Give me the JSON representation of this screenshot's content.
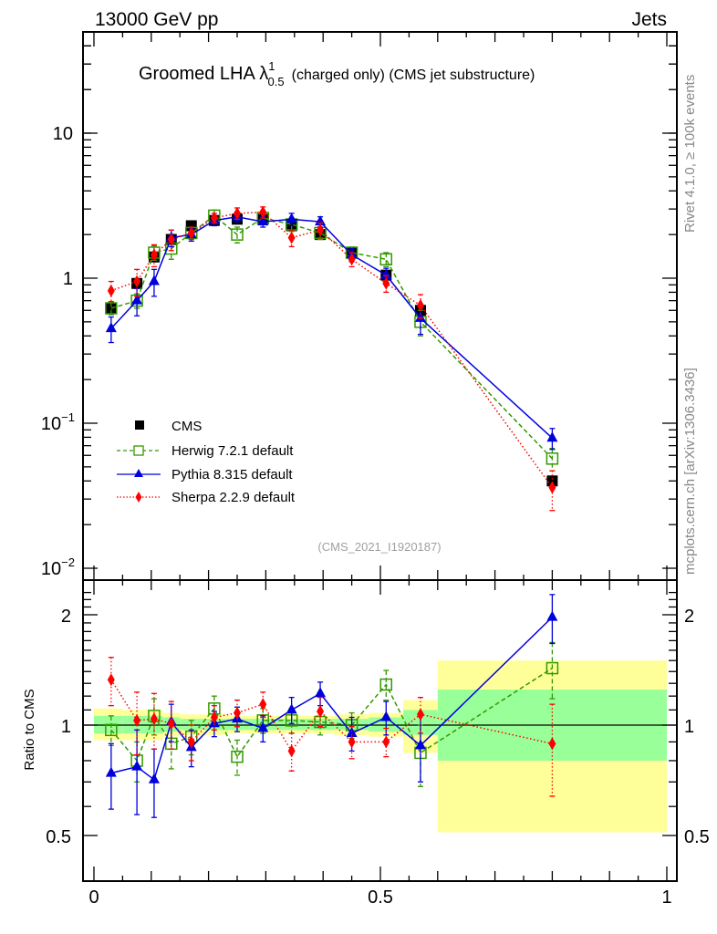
{
  "header": {
    "left_label": "13000 GeV pp",
    "right_label": "Jets"
  },
  "side_labels": {
    "rivet": "Rivet 4.1.0, ≥ 100k events",
    "mcplots": "mcplots.cern.ch [arXiv:1306.3436]"
  },
  "colors": {
    "cms": "#000000",
    "herwig": "#339900",
    "pythia": "#0000dd",
    "sherpa": "#ff0000",
    "band_inner": "#99ff99",
    "band_outer": "#ffff99",
    "watermark": "#a0a0a0"
  },
  "chart_data": [
    {
      "type": "scatter",
      "panel": "main",
      "title_main": "Groomed LHA ",
      "title_symbol": "λ",
      "title_sup": "1",
      "title_sub": "0.5",
      "title_rest": "(charged only) (CMS jet substructure)",
      "annotation": "(CMS_2021_I1920187)",
      "xlabel": "",
      "ylabel": "",
      "yscale": "log",
      "xlim": [
        0,
        1
      ],
      "ylim": [
        0.01,
        50
      ],
      "ytick_labels": [
        {
          "value": 10,
          "base": "10",
          "exp": ""
        },
        {
          "value": 1,
          "base": "1",
          "exp": ""
        },
        {
          "value": 0.1,
          "base": "10",
          "exp": "−1"
        },
        {
          "value": 0.01,
          "base": "10",
          "exp": "−2"
        }
      ],
      "legend": {
        "placement": "lower-left",
        "entries": [
          "CMS",
          "Herwig 7.2.1 default",
          "Pythia 8.315 default",
          "Sherpa 2.2.9 default"
        ]
      },
      "x": [
        0.03,
        0.075,
        0.105,
        0.135,
        0.17,
        0.21,
        0.25,
        0.295,
        0.345,
        0.395,
        0.45,
        0.51,
        0.57,
        0.8
      ],
      "series": [
        {
          "name": "CMS",
          "marker": "square-filled",
          "values": [
            0.62,
            0.92,
            1.4,
            1.85,
            2.3,
            2.5,
            2.55,
            2.55,
            2.3,
            2.0,
            1.5,
            1.05,
            0.6,
            0.04
          ],
          "errors": [
            0.04,
            0.05,
            0.06,
            0.07,
            0.08,
            0.08,
            0.08,
            0.08,
            0.08,
            0.07,
            0.05,
            0.04,
            0.03,
            0.003
          ]
        },
        {
          "name": "Herwig 7.2.1 default",
          "marker": "square-open",
          "line": "dashed",
          "values": [
            0.62,
            0.7,
            1.5,
            1.6,
            2.05,
            2.7,
            2.0,
            2.6,
            2.35,
            2.05,
            1.5,
            1.35,
            0.5,
            0.057
          ],
          "errors": [
            0.06,
            0.08,
            0.17,
            0.25,
            0.2,
            0.25,
            0.25,
            0.25,
            0.25,
            0.2,
            0.14,
            0.15,
            0.1,
            0.01
          ]
        },
        {
          "name": "Pythia 8.315 default",
          "marker": "triangle",
          "line": "solid",
          "values": [
            0.45,
            0.7,
            0.95,
            1.9,
            2.0,
            2.5,
            2.65,
            2.45,
            2.55,
            2.45,
            1.45,
            1.05,
            0.53,
            0.079
          ],
          "errors": [
            0.09,
            0.15,
            0.2,
            0.25,
            0.2,
            0.2,
            0.2,
            0.2,
            0.25,
            0.2,
            0.15,
            0.12,
            0.12,
            0.013
          ]
        },
        {
          "name": "Sherpa 2.2.9 default",
          "marker": "diamond",
          "line": "dotted",
          "values": [
            0.82,
            0.95,
            1.45,
            1.85,
            2.05,
            2.6,
            2.8,
            2.85,
            1.9,
            2.15,
            1.35,
            0.92,
            0.65,
            0.036
          ],
          "errors": [
            0.13,
            0.2,
            0.25,
            0.3,
            0.2,
            0.2,
            0.25,
            0.25,
            0.25,
            0.25,
            0.15,
            0.12,
            0.12,
            0.011
          ]
        }
      ]
    },
    {
      "type": "scatter",
      "panel": "ratio",
      "ylabel": "Ratio to CMS",
      "xlabel": "",
      "yscale": "log",
      "xlim": [
        0,
        1
      ],
      "ylim": [
        0.42,
        2.4
      ],
      "ytick_labels": [
        "2",
        "1",
        "0.5"
      ],
      "yticks": [
        2,
        1,
        0.5
      ],
      "xtick_labels": [
        "0",
        "0.5",
        "1"
      ],
      "xticks": [
        0,
        0.5,
        1
      ],
      "bin_edges": [
        0,
        0.05,
        0.09,
        0.12,
        0.15,
        0.19,
        0.23,
        0.27,
        0.32,
        0.37,
        0.42,
        0.48,
        0.54,
        0.6,
        1.0
      ],
      "band_inner": [
        [
          0.95,
          1.06
        ],
        [
          0.95,
          1.06
        ],
        [
          0.95,
          1.06
        ],
        [
          0.96,
          1.05
        ],
        [
          0.97,
          1.04
        ],
        [
          0.97,
          1.04
        ],
        [
          0.97,
          1.04
        ],
        [
          0.97,
          1.04
        ],
        [
          0.97,
          1.04
        ],
        [
          0.97,
          1.04
        ],
        [
          0.97,
          1.04
        ],
        [
          0.96,
          1.05
        ],
        [
          0.94,
          1.1
        ],
        [
          0.8,
          1.25
        ]
      ],
      "band_outer": [
        [
          0.91,
          1.11
        ],
        [
          0.91,
          1.1
        ],
        [
          0.91,
          1.1
        ],
        [
          0.93,
          1.08
        ],
        [
          0.94,
          1.07
        ],
        [
          0.94,
          1.07
        ],
        [
          0.95,
          1.06
        ],
        [
          0.95,
          1.06
        ],
        [
          0.95,
          1.06
        ],
        [
          0.95,
          1.06
        ],
        [
          0.94,
          1.07
        ],
        [
          0.93,
          1.08
        ],
        [
          0.84,
          1.17
        ],
        [
          0.51,
          1.5
        ]
      ],
      "x": [
        0.03,
        0.075,
        0.105,
        0.135,
        0.17,
        0.21,
        0.25,
        0.295,
        0.345,
        0.395,
        0.45,
        0.51,
        0.57,
        0.8
      ],
      "series": [
        {
          "name": "Herwig 7.2.1 default",
          "values": [
            0.97,
            0.8,
            1.06,
            0.89,
            0.93,
            1.11,
            0.82,
            1.03,
            1.03,
            1.02,
            1.0,
            1.29,
            0.84,
            1.43
          ],
          "errors": [
            0.09,
            0.1,
            0.12,
            0.13,
            0.1,
            0.09,
            0.09,
            0.08,
            0.08,
            0.08,
            0.08,
            0.12,
            0.16,
            0.25
          ]
        },
        {
          "name": "Pythia 8.315 default",
          "values": [
            0.74,
            0.77,
            0.71,
            1.02,
            0.87,
            1.01,
            1.04,
            0.98,
            1.1,
            1.22,
            0.95,
            1.05,
            0.88,
            1.97
          ],
          "errors": [
            0.15,
            0.2,
            0.15,
            0.12,
            0.1,
            0.08,
            0.08,
            0.08,
            0.09,
            0.09,
            0.1,
            0.11,
            0.18,
            0.3
          ]
        },
        {
          "name": "Sherpa 2.2.9 default",
          "values": [
            1.33,
            1.03,
            1.04,
            1.01,
            0.9,
            1.05,
            1.08,
            1.14,
            0.85,
            1.09,
            0.9,
            0.9,
            1.07,
            0.89
          ],
          "errors": [
            0.2,
            0.2,
            0.18,
            0.15,
            0.1,
            0.08,
            0.09,
            0.09,
            0.1,
            0.1,
            0.09,
            0.08,
            0.12,
            0.25
          ]
        }
      ]
    }
  ]
}
